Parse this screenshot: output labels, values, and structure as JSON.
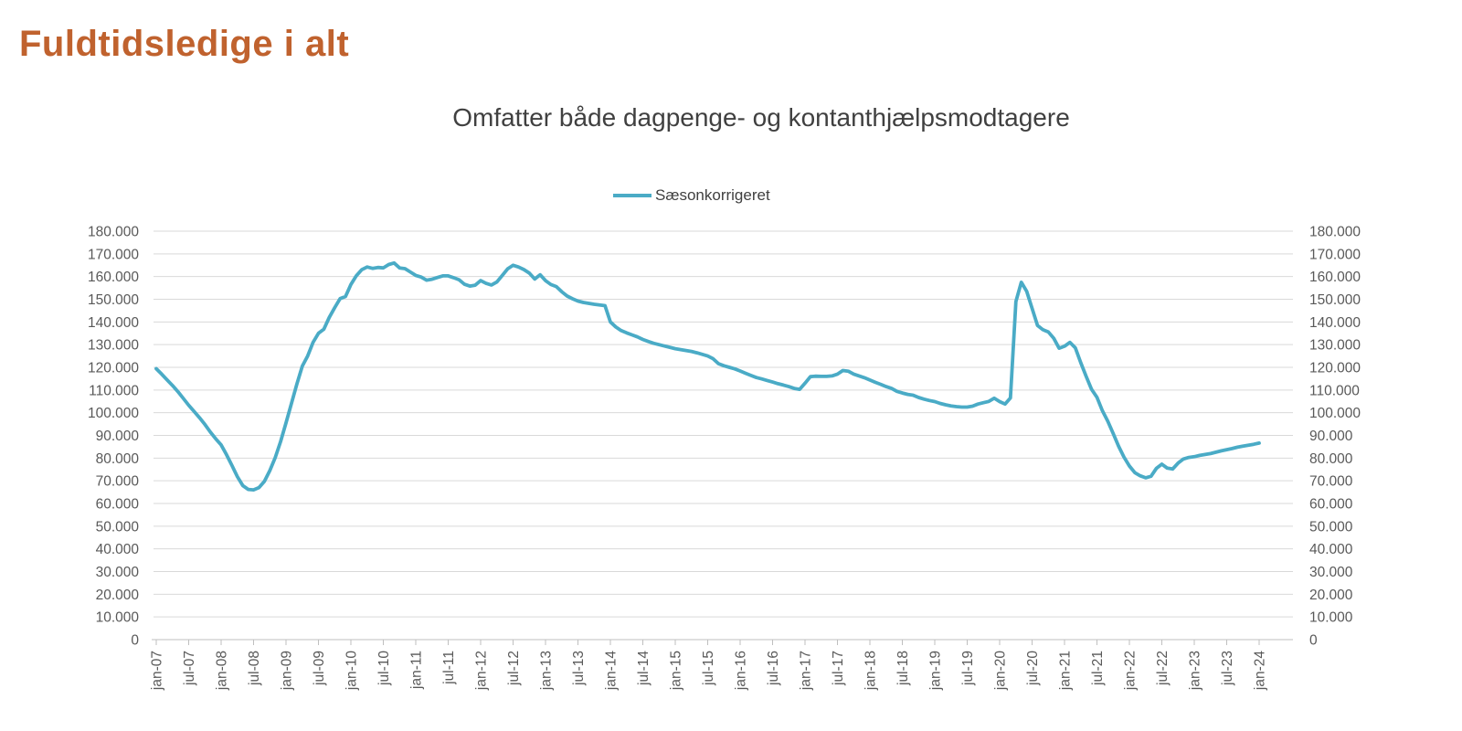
{
  "page_title": "Fuldtidsledige i alt",
  "colors": {
    "title_accent": "#C0622E",
    "line": "#4AABC6",
    "grid": "#D9D9D9",
    "axis": "#BFBFBF",
    "axis_labels": "#595959",
    "subtitle_text": "#404040"
  },
  "chart_data": {
    "type": "line",
    "title": "Omfatter både dagpenge- og kontanthjælpsmodtagere",
    "legend_position": "top",
    "grid": "horizontal",
    "y_axis_sides": "both",
    "ylim": [
      0,
      180000
    ],
    "y_tick_values": [
      0,
      10000,
      20000,
      30000,
      40000,
      50000,
      60000,
      70000,
      80000,
      90000,
      100000,
      110000,
      120000,
      130000,
      140000,
      150000,
      160000,
      170000,
      180000
    ],
    "y_tick_labels": [
      "0",
      "10.000",
      "20.000",
      "30.000",
      "40.000",
      "50.000",
      "60.000",
      "70.000",
      "80.000",
      "90.000",
      "100.000",
      "110.000",
      "120.000",
      "130.000",
      "140.000",
      "150.000",
      "160.000",
      "170.000",
      "180.000"
    ],
    "x_unit": "month",
    "x_start_label": "jan-07",
    "x_end_label": "jan-24",
    "x_tick_interval_months": 6,
    "x_tick_labels": [
      "jan-07",
      "jul-07",
      "jan-08",
      "jul-08",
      "jan-09",
      "jul-09",
      "jan-10",
      "jul-10",
      "jan-11",
      "jul-11",
      "jan-12",
      "jul-12",
      "jan-13",
      "jul-13",
      "jan-14",
      "jul-14",
      "jan-15",
      "jul-15",
      "jan-16",
      "jul-16",
      "jan-17",
      "jul-17",
      "jan-18",
      "jul-18",
      "jan-19",
      "jul-19",
      "jan-20",
      "jul-20",
      "jan-21",
      "jul-21",
      "jan-22",
      "jul-22",
      "jan-23",
      "jul-23",
      "jan-24"
    ],
    "series": [
      {
        "name": "Sæsonkorrigeret",
        "color": "#4AABC6",
        "values": [
          119400,
          117000,
          114500,
          112000,
          109300,
          106300,
          103300,
          100600,
          97800,
          94800,
          91500,
          88500,
          85800,
          81500,
          76800,
          71800,
          67900,
          66200,
          66000,
          67000,
          69700,
          74500,
          80200,
          87300,
          95500,
          104000,
          112500,
          120500,
          125000,
          131000,
          135000,
          136800,
          142000,
          146300,
          150300,
          151200,
          156500,
          160300,
          163000,
          164200,
          163600,
          164000,
          163800,
          165300,
          166000,
          163800,
          163500,
          162000,
          160500,
          159800,
          158400,
          158800,
          159600,
          160300,
          160300,
          159500,
          158600,
          156600,
          155800,
          156200,
          158200,
          157000,
          156300,
          157600,
          160500,
          163400,
          165000,
          164200,
          163100,
          161500,
          158900,
          160800,
          158200,
          156500,
          155600,
          153300,
          151400,
          150200,
          149200,
          148600,
          148200,
          147800,
          147500,
          147200,
          140000,
          137800,
          136200,
          135200,
          134300,
          133400,
          132300,
          131400,
          130600,
          130000,
          129400,
          128800,
          128200,
          127800,
          127400,
          127000,
          126400,
          125700,
          125000,
          123800,
          121600,
          120700,
          120000,
          119300,
          118400,
          117400,
          116400,
          115500,
          114900,
          114200,
          113500,
          112800,
          112200,
          111500,
          110700,
          110300,
          113000,
          115900,
          116100,
          116000,
          116000,
          116200,
          117000,
          118600,
          118300,
          117000,
          116200,
          115400,
          114400,
          113400,
          112500,
          111500,
          110700,
          109400,
          108700,
          108100,
          107700,
          106700,
          106000,
          105400,
          104900,
          104100,
          103500,
          103000,
          102700,
          102500,
          102500,
          102900,
          103800,
          104400,
          105000,
          106400,
          104900,
          103800,
          106500,
          149000,
          157500,
          153500,
          146000,
          138500,
          136600,
          135600,
          132800,
          128400,
          129300,
          131000,
          128600,
          122000,
          116000,
          110300,
          106800,
          100900,
          96300,
          90800,
          85200,
          80400,
          76500,
          73600,
          72200,
          71300,
          72000,
          75500,
          77300,
          75600,
          75200,
          77800,
          79600,
          80300,
          80600,
          81200,
          81600,
          82000,
          82600,
          83200,
          83700,
          84200,
          84800,
          85300,
          85700,
          86100,
          86600
        ]
      }
    ]
  }
}
